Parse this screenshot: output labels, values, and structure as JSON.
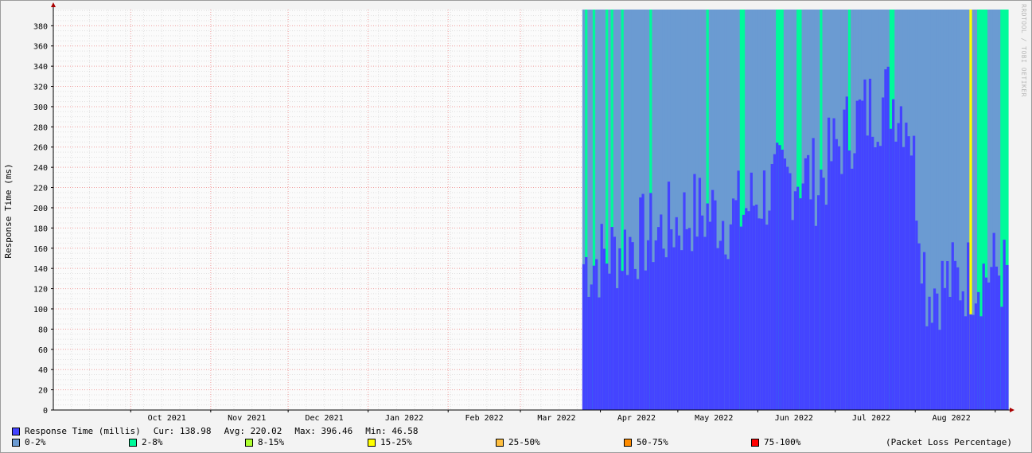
{
  "chart_data": {
    "type": "bar",
    "ylabel": "Response Time (ms)",
    "watermark": "RRDTOOL / TOBI OETIKER",
    "ylim": [
      0,
      396
    ],
    "ytick_labels": [
      "0",
      "20",
      "40",
      "60",
      "80",
      "100",
      "120",
      "140",
      "160",
      "180",
      "200",
      "220",
      "240",
      "260",
      "280",
      "300",
      "320",
      "340",
      "360",
      "380"
    ],
    "ytick_values": [
      0,
      20,
      40,
      60,
      80,
      100,
      120,
      140,
      160,
      180,
      200,
      220,
      240,
      260,
      280,
      300,
      320,
      340,
      360,
      380
    ],
    "x_range": [
      "2021-09-01",
      "2022-09-06"
    ],
    "xtick_labels": [
      "Oct 2021",
      "Nov 2021",
      "Dec 2021",
      "Jan 2022",
      "Feb 2022",
      "Mar 2022",
      "Apr 2022",
      "May 2022",
      "Jun 2022",
      "Jul 2022",
      "Aug 2022"
    ],
    "xtick_dates": [
      "2021-10-15",
      "2021-11-15",
      "2021-12-15",
      "2022-01-15",
      "2022-02-15",
      "2022-03-15",
      "2022-04-15",
      "2022-05-15",
      "2022-06-15",
      "2022-07-15",
      "2022-08-15"
    ],
    "month_boundaries": [
      "2021-10-01",
      "2021-11-01",
      "2021-12-01",
      "2022-01-01",
      "2022-02-01",
      "2022-03-01",
      "2022-04-01",
      "2022-05-01",
      "2022-06-01",
      "2022-07-01",
      "2022-08-01",
      "2022-09-01"
    ],
    "data_start": "2022-03-25",
    "data_end": "2022-09-06",
    "series": [
      {
        "name": "Response Time (millis)",
        "color": "#4444ff",
        "x": [
          "2022-03-25",
          "2022-04-01",
          "2022-04-08",
          "2022-04-15",
          "2022-04-22",
          "2022-04-29",
          "2022-05-06",
          "2022-05-13",
          "2022-05-20",
          "2022-05-27",
          "2022-06-03",
          "2022-06-10",
          "2022-06-17",
          "2022-06-24",
          "2022-07-01",
          "2022-07-08",
          "2022-07-15",
          "2022-07-22",
          "2022-07-29",
          "2022-08-05",
          "2022-08-12",
          "2022-08-19",
          "2022-08-26",
          "2022-09-02",
          "2022-09-06"
        ],
        "values": [
          145,
          150,
          160,
          170,
          175,
          185,
          195,
          195,
          190,
          200,
          215,
          225,
          235,
          225,
          260,
          285,
          300,
          310,
          295,
          120,
          125,
          130,
          135,
          140,
          125
        ]
      }
    ],
    "loss_bands": [
      {
        "label": "0-2%",
        "color": "#6b9bd2"
      },
      {
        "label": "2-8%",
        "color": "#00fa9a"
      },
      {
        "label": "8-15%",
        "color": "#adff2f"
      },
      {
        "label": "15-25%",
        "color": "#ffff00"
      },
      {
        "label": "25-50%",
        "color": "#ffbf3f"
      },
      {
        "label": "50-75%",
        "color": "#ff8c00"
      },
      {
        "label": "75-100%",
        "color": "#ff0000"
      }
    ],
    "loss_spikes_2_8": [
      "2022-03-26",
      "2022-03-29",
      "2022-04-03",
      "2022-04-05",
      "2022-04-09",
      "2022-04-20",
      "2022-05-12",
      "2022-05-25",
      "2022-05-26",
      "2022-06-08",
      "2022-06-09",
      "2022-06-10",
      "2022-06-16",
      "2022-06-17",
      "2022-06-25",
      "2022-07-06",
      "2022-07-22",
      "2022-07-23",
      "2022-08-22",
      "2022-08-25",
      "2022-08-26",
      "2022-08-27",
      "2022-08-28",
      "2022-09-03",
      "2022-09-04",
      "2022-09-05"
    ],
    "loss_spikes_15_25": [
      "2022-08-22"
    ]
  },
  "legend": {
    "response_label": "Response Time (millis)",
    "cur": "Cur: 138.98",
    "avg": "Avg: 220.02",
    "max": "Max: 396.46",
    "min": "Min: 46.58",
    "loss_note": "(Packet Loss Percentage)"
  }
}
